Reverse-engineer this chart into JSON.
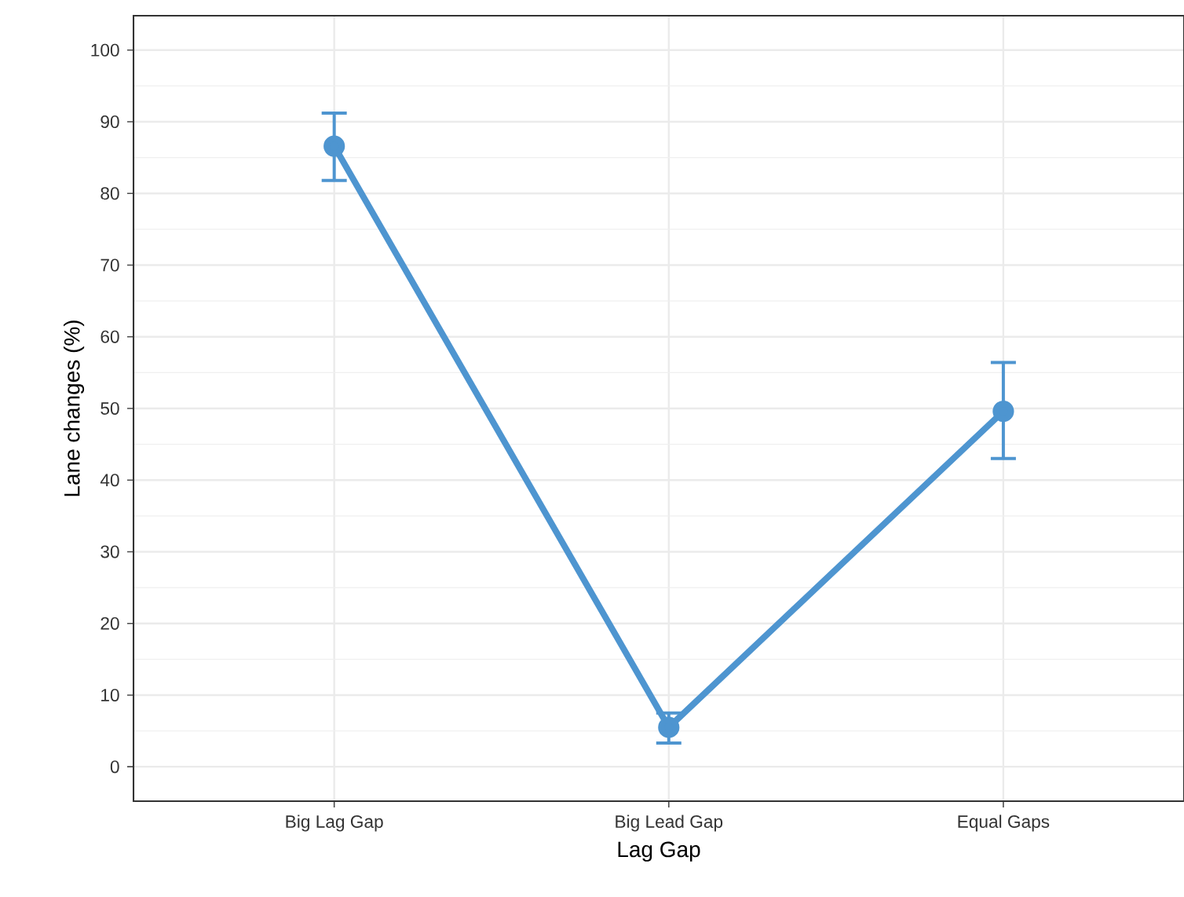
{
  "chart_data": {
    "type": "line",
    "xlabel": "Lag Gap",
    "ylabel": "Lane changes (%)",
    "categories": [
      "Big Lag Gap",
      "Big Lead Gap",
      "Equal Gaps"
    ],
    "series": [
      {
        "color": "#4e95d0",
        "values": [
          86.6,
          5.5,
          49.6
        ],
        "errors": [
          [
            81.8,
            91.2
          ],
          [
            3.3,
            7.5
          ],
          [
            43.0,
            56.4
          ]
        ]
      }
    ],
    "ylim": [
      -4.8,
      104.8
    ],
    "yticks": [
      0,
      10,
      20,
      30,
      40,
      50,
      60,
      70,
      80,
      90,
      100
    ],
    "grid": true,
    "marker": "circle",
    "line_style": "solid"
  }
}
